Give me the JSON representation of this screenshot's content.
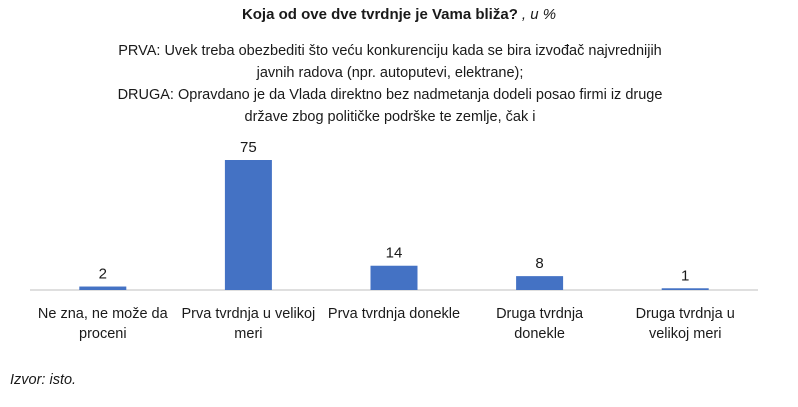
{
  "chart_data": {
    "type": "bar",
    "title": "Koja od ove dve tvrdnje je Vama bliža?",
    "title_unit": ", u %",
    "subtitle_lines": [
      "PRVA: Uvek treba obezbediti što veću konkurenciju kada se bira izvođač najvrednijih",
      "javnih radova (npr. autoputevi, elektrane);",
      "DRUGA: Opravdano je da Vlada direktno bez nadmetanja dodeli posao firmi iz druge",
      "države zbog političke podrške te zemlje, čak i"
    ],
    "categories": [
      [
        "Ne zna, ne može da",
        "proceni"
      ],
      [
        "Prva tvrdnja u velikoj",
        "meri"
      ],
      [
        "Prva tvrdnja donekle"
      ],
      [
        "Druga tvrdnja",
        "donekle"
      ],
      [
        "Druga tvrdnja u",
        "velikoj meri"
      ]
    ],
    "values": [
      2,
      75,
      14,
      8,
      1
    ],
    "ylim": [
      0,
      75
    ],
    "bar_color": "#4472C4",
    "grid": false,
    "data_labels": true
  },
  "source": "Izvor: isto."
}
